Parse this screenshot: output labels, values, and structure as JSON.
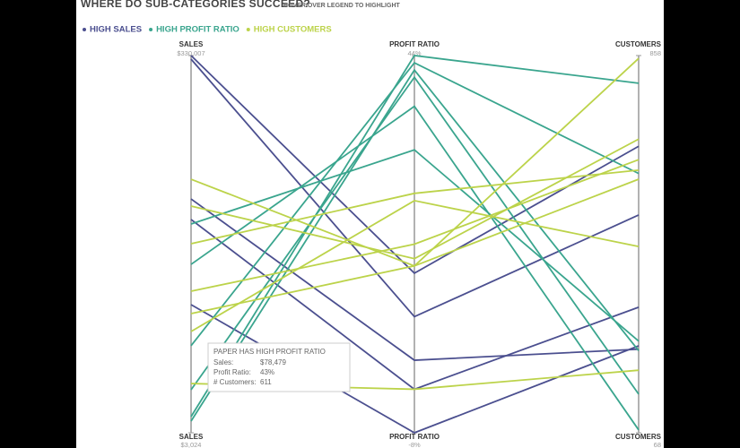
{
  "chart_data": {
    "type": "parallel",
    "title": "WHERE DO SUB-CATEGORIES SUCCEED?",
    "subtitle": "HOVER OVER LEGEND TO HIGHLIGHT",
    "axes": [
      {
        "name": "SALES",
        "max": {
          "value": 330007,
          "label": "$330,007"
        },
        "min": {
          "value": 3024,
          "label": "$3,024"
        }
      },
      {
        "name": "PROFIT RATIO",
        "max": {
          "value": 44,
          "label": "44%"
        },
        "min": {
          "value": -8,
          "label": "-8%"
        }
      },
      {
        "name": "CUSTOMERS",
        "max": 858,
        "min": 68
      }
    ],
    "groups": [
      {
        "name": "HIGH SALES",
        "color": "#4b4f8f"
      },
      {
        "name": "HIGH PROFIT RATIO",
        "color": "#3aa58e"
      },
      {
        "name": "HIGH CUSTOMERS",
        "color": "#bcd34a"
      }
    ],
    "lines": [
      {
        "group": 0,
        "values": [
          330007,
          14,
          668
        ]
      },
      {
        "group": 0,
        "values": [
          326900,
          8,
          524
        ]
      },
      {
        "group": 0,
        "values": [
          205700,
          2,
          243
        ]
      },
      {
        "group": 0,
        "values": [
          187900,
          -2,
          331
        ]
      },
      {
        "group": 0,
        "values": [
          114100,
          -8,
          250
        ]
      },
      {
        "group": 1,
        "values": [
          17000,
          44,
          800
        ]
      },
      {
        "group": 1,
        "values": [
          13100,
          42,
          240
        ]
      },
      {
        "group": 1,
        "values": [
          78479,
          43,
          611
        ]
      },
      {
        "group": 1,
        "values": [
          149000,
          37,
          74
        ]
      },
      {
        "group": 1,
        "values": [
          184000,
          31,
          260
        ]
      },
      {
        "group": 1,
        "values": [
          40300,
          41,
          149
        ]
      },
      {
        "group": 2,
        "values": [
          222800,
          15,
          852
        ]
      },
      {
        "group": 2,
        "values": [
          199500,
          16,
          683
        ]
      },
      {
        "group": 2,
        "values": [
          166900,
          25,
          618
        ]
      },
      {
        "group": 2,
        "values": [
          125700,
          18,
          640
        ]
      },
      {
        "group": 2,
        "values": [
          90800,
          24,
          458
        ]
      },
      {
        "group": 2,
        "values": [
          45700,
          -2,
          199
        ]
      },
      {
        "group": 2,
        "values": [
          106300,
          15,
          599
        ]
      }
    ],
    "tooltip": {
      "title": "PAPER HAS HIGH PROFIT RATIO",
      "rows": [
        [
          "Sales:",
          "$78,479"
        ],
        [
          "Profit Ratio:",
          "43%"
        ],
        [
          "# Customers:",
          "611"
        ]
      ]
    }
  }
}
